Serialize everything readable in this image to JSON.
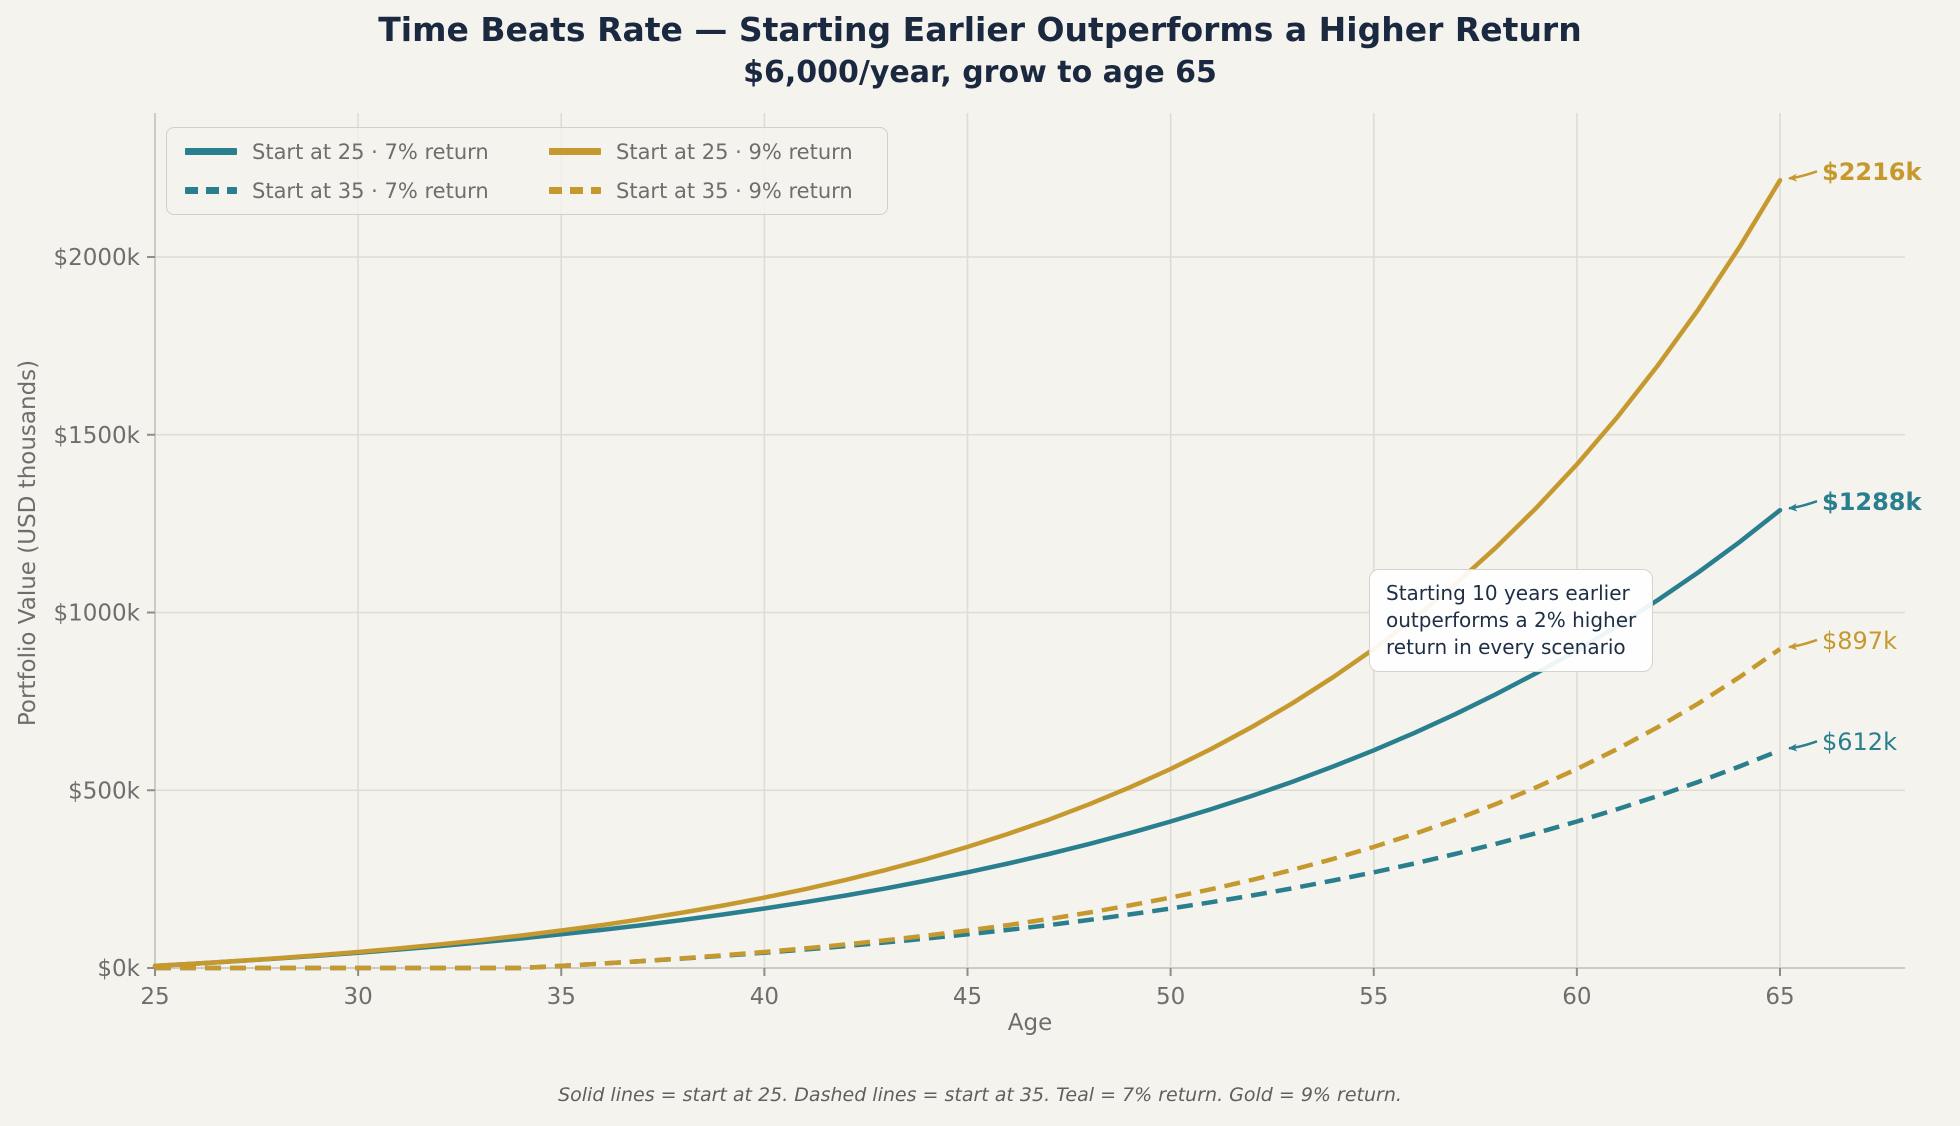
{
  "title": {
    "line1": "Time Beats Rate — Starting Earlier Outperforms a Higher Return",
    "line2": "$6,000/year, grow to age 65"
  },
  "axes": {
    "x_label": "Age",
    "y_label": "Portfolio Value (USD thousands)",
    "x_ticks": [
      25,
      30,
      35,
      40,
      45,
      50,
      55,
      60,
      65
    ],
    "y_ticks": [
      0,
      500,
      1000,
      1500,
      2000
    ],
    "y_tick_labels": [
      "$0k",
      "$500k",
      "$1000k",
      "$1500k",
      "$2000k"
    ],
    "xlim": [
      25,
      68.1
    ],
    "ylim": [
      0,
      2400
    ]
  },
  "chart_data": {
    "type": "line",
    "title": "Time Beats Rate — Starting Earlier Outperforms a Higher Return",
    "subtitle": "$6,000/year, grow to age 65",
    "xlabel": "Age",
    "ylabel": "Portfolio Value (USD thousands)",
    "grid": true,
    "legend_position": "upper left",
    "x": [
      25,
      26,
      27,
      28,
      29,
      30,
      31,
      32,
      33,
      34,
      35,
      36,
      37,
      38,
      39,
      40,
      41,
      42,
      43,
      44,
      45,
      46,
      47,
      48,
      49,
      50,
      51,
      52,
      53,
      54,
      55,
      56,
      57,
      58,
      59,
      60,
      61,
      62,
      63,
      64,
      65
    ],
    "series": [
      {
        "name": "Start at 25 · 7% return",
        "color": "#2a7f8e",
        "dash": "solid",
        "end_label": "$1288k",
        "end_label_bold": true,
        "values": [
          6,
          12.4,
          19.3,
          26.6,
          34.5,
          42.9,
          51.9,
          61.6,
          71.9,
          82.9,
          94.7,
          107.3,
          120.8,
          135.3,
          150.8,
          167.3,
          185.0,
          204.0,
          224.3,
          246.0,
          269.2,
          294.0,
          320.6,
          349.1,
          379.5,
          412.1,
          446.9,
          484.2,
          524.1,
          566.8,
          612.4,
          661.3,
          713.6,
          769.5,
          829.4,
          893.5,
          962.0,
          1035.4,
          1113.8,
          1197.8,
          1287.7
        ]
      },
      {
        "name": "Start at 35 · 7% return",
        "color": "#2a7f8e",
        "dash": "dashed",
        "end_label": "$612k",
        "end_label_bold": false,
        "values": [
          0,
          0,
          0,
          0,
          0,
          0,
          0,
          0,
          0,
          0,
          6,
          12.4,
          19.3,
          26.6,
          34.5,
          42.9,
          51.9,
          61.6,
          71.9,
          82.9,
          94.7,
          107.3,
          120.8,
          135.3,
          150.8,
          167.3,
          185.0,
          204.0,
          224.3,
          246.0,
          269.2,
          294.0,
          320.6,
          349.1,
          379.5,
          412.1,
          446.9,
          484.2,
          524.1,
          566.8,
          612.4
        ]
      },
      {
        "name": "Start at 25 · 9% return",
        "color": "#c6992f",
        "dash": "solid",
        "end_label": "$2216k",
        "end_label_bold": true,
        "values": [
          6,
          12.5,
          19.7,
          27.4,
          35.9,
          45.1,
          55.2,
          66.2,
          78.1,
          91.2,
          105.4,
          120.8,
          137.7,
          156.1,
          176.2,
          198.0,
          221.8,
          247.8,
          276.1,
          307.0,
          340.6,
          377.2,
          417.2,
          460.7,
          508.2,
          559.9,
          616.3,
          677.8,
          744.8,
          817.9,
          897.4,
          984.2,
          1078.8,
          1181.9,
          1294.3,
          1416.7,
          1550.3,
          1695.8,
          1854.4,
          2027.3,
          2215.7
        ]
      },
      {
        "name": "Start at 35 · 9% return",
        "color": "#c6992f",
        "dash": "dashed",
        "end_label": "$897k",
        "end_label_bold": false,
        "values": [
          0,
          0,
          0,
          0,
          0,
          0,
          0,
          0,
          0,
          0,
          6,
          12.5,
          19.7,
          27.4,
          35.9,
          45.1,
          55.2,
          66.2,
          78.1,
          91.2,
          105.4,
          120.8,
          137.7,
          156.1,
          176.2,
          198.0,
          221.8,
          247.8,
          276.1,
          307.0,
          340.6,
          377.2,
          417.2,
          460.7,
          508.2,
          559.9,
          616.3,
          677.8,
          744.8,
          817.9,
          897.4
        ]
      }
    ]
  },
  "legend": {
    "items": [
      {
        "label": "Start at 25 · 7% return",
        "color": "#2a7f8e",
        "dash": "solid"
      },
      {
        "label": "Start at 35 · 7% return",
        "color": "#2a7f8e",
        "dash": "dashed"
      },
      {
        "label": "Start at 25 · 9% return",
        "color": "#c6992f",
        "dash": "solid"
      },
      {
        "label": "Start at 35 · 9% return",
        "color": "#c6992f",
        "dash": "dashed"
      }
    ]
  },
  "annotation": {
    "text": "Starting 10 years earlier\noutperforms a 2% higher\nreturn in every scenario"
  },
  "footnote": "Solid lines = start at 25. Dashed lines = start at 35. Teal = 7% return. Gold = 9% return.",
  "colors": {
    "background": "#f5f3ee",
    "teal": "#2a7f8e",
    "gold": "#c6992f",
    "title": "#1a2940",
    "tick_text": "#6e6e6e",
    "grid": "#dedcd4",
    "spine": "#cdcbc3",
    "tick_mark": "#8f8d86",
    "annotation_text": "#1e2e44"
  }
}
